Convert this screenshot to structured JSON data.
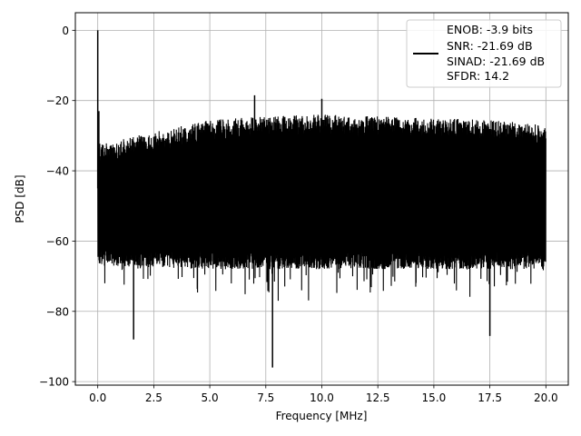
{
  "chart_data": {
    "type": "line",
    "title": "",
    "xlabel": "Frequency [MHz]",
    "ylabel": "PSD [dB]",
    "xlim": [
      -1.0,
      21.0
    ],
    "ylim": [
      -101,
      5
    ],
    "x_ticks": [
      0.0,
      2.5,
      5.0,
      7.5,
      10.0,
      12.5,
      15.0,
      17.5,
      20.0
    ],
    "x_tick_labels": [
      "0.0",
      "2.5",
      "5.0",
      "7.5",
      "10.0",
      "12.5",
      "15.0",
      "17.5",
      "20.0"
    ],
    "y_ticks": [
      0,
      -20,
      -40,
      -60,
      -80,
      -100
    ],
    "y_tick_labels": [
      "0",
      "−20",
      "−40",
      "−60",
      "−80",
      "−100"
    ],
    "grid": true,
    "legend_position": "top-right",
    "legend_lines": [
      "ENOB: -3.9 bits",
      "SNR: -21.69 dB",
      "SINAD: -21.69 dB",
      "SFDR: 14.2"
    ],
    "series": [
      {
        "color": "#000000",
        "x_range": [
          0.0,
          20.0
        ],
        "upper_envelope_db": [
          {
            "x": 0.3,
            "y": -32
          },
          {
            "x": 2.5,
            "y": -29
          },
          {
            "x": 5.0,
            "y": -25.5
          },
          {
            "x": 7.5,
            "y": -24.5
          },
          {
            "x": 10.0,
            "y": -24
          },
          {
            "x": 12.5,
            "y": -24.5
          },
          {
            "x": 15.0,
            "y": -25
          },
          {
            "x": 17.5,
            "y": -25.5
          },
          {
            "x": 20.0,
            "y": -27
          }
        ],
        "lower_envelope_db": [
          {
            "x": 0.3,
            "y": -67
          },
          {
            "x": 5.0,
            "y": -68
          },
          {
            "x": 10.0,
            "y": -68
          },
          {
            "x": 15.0,
            "y": -68
          },
          {
            "x": 20.0,
            "y": -68
          }
        ],
        "peaks": [
          {
            "x": 0.0,
            "y": 0
          },
          {
            "x": 0.05,
            "y": -23
          },
          {
            "x": 1.6,
            "y": -88
          },
          {
            "x": 7.0,
            "y": -18.5
          },
          {
            "x": 7.8,
            "y": -96
          },
          {
            "x": 10.0,
            "y": -19.5
          },
          {
            "x": 17.5,
            "y": -87
          }
        ]
      }
    ]
  }
}
